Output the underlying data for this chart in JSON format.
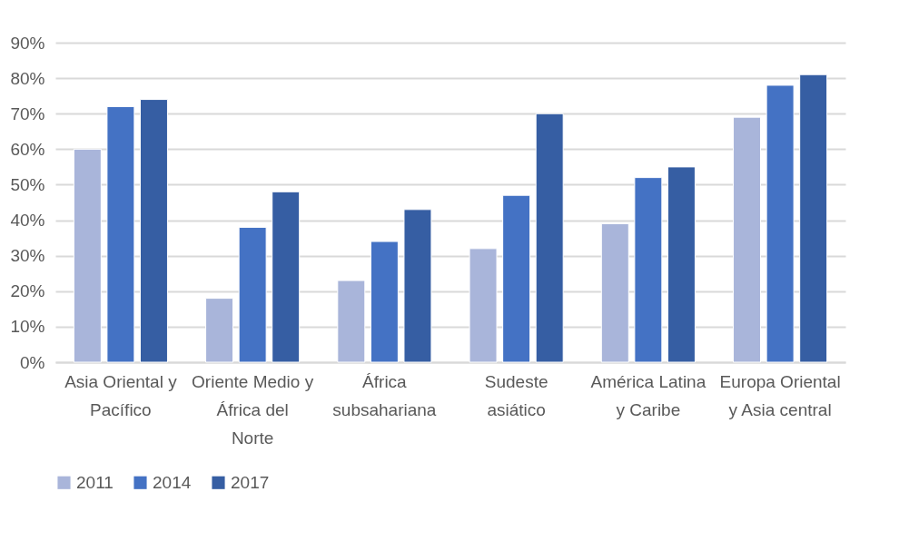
{
  "chart_data": {
    "type": "bar",
    "categories": [
      "Asia Oriental y Pacífico",
      "Oriente Medio y África del Norte",
      "África subsahariana",
      "Sudeste asiático",
      "América Latina y Caribe",
      "Europa Oriental y Asia central"
    ],
    "series": [
      {
        "name": "2011",
        "color": "#a9b5da",
        "values": [
          60,
          18,
          23,
          32,
          39,
          69
        ]
      },
      {
        "name": "2014",
        "color": "#4472c4",
        "values": [
          72,
          38,
          34,
          47,
          52,
          78
        ]
      },
      {
        "name": "2017",
        "color": "#365ea3",
        "values": [
          74,
          48,
          43,
          70,
          55,
          81
        ]
      }
    ],
    "ylim": [
      0,
      90
    ],
    "yticks": [
      {
        "value": 0,
        "label": "0%"
      },
      {
        "value": 10,
        "label": "10%"
      },
      {
        "value": 20,
        "label": "20%"
      },
      {
        "value": 30,
        "label": "30%"
      },
      {
        "value": 40,
        "label": "40%"
      },
      {
        "value": 50,
        "label": "50%"
      },
      {
        "value": 60,
        "label": "60%"
      },
      {
        "value": 70,
        "label": "70%"
      },
      {
        "value": 80,
        "label": "80%"
      },
      {
        "value": 90,
        "label": "90%"
      }
    ],
    "grid": "y",
    "legend": "bottom"
  }
}
